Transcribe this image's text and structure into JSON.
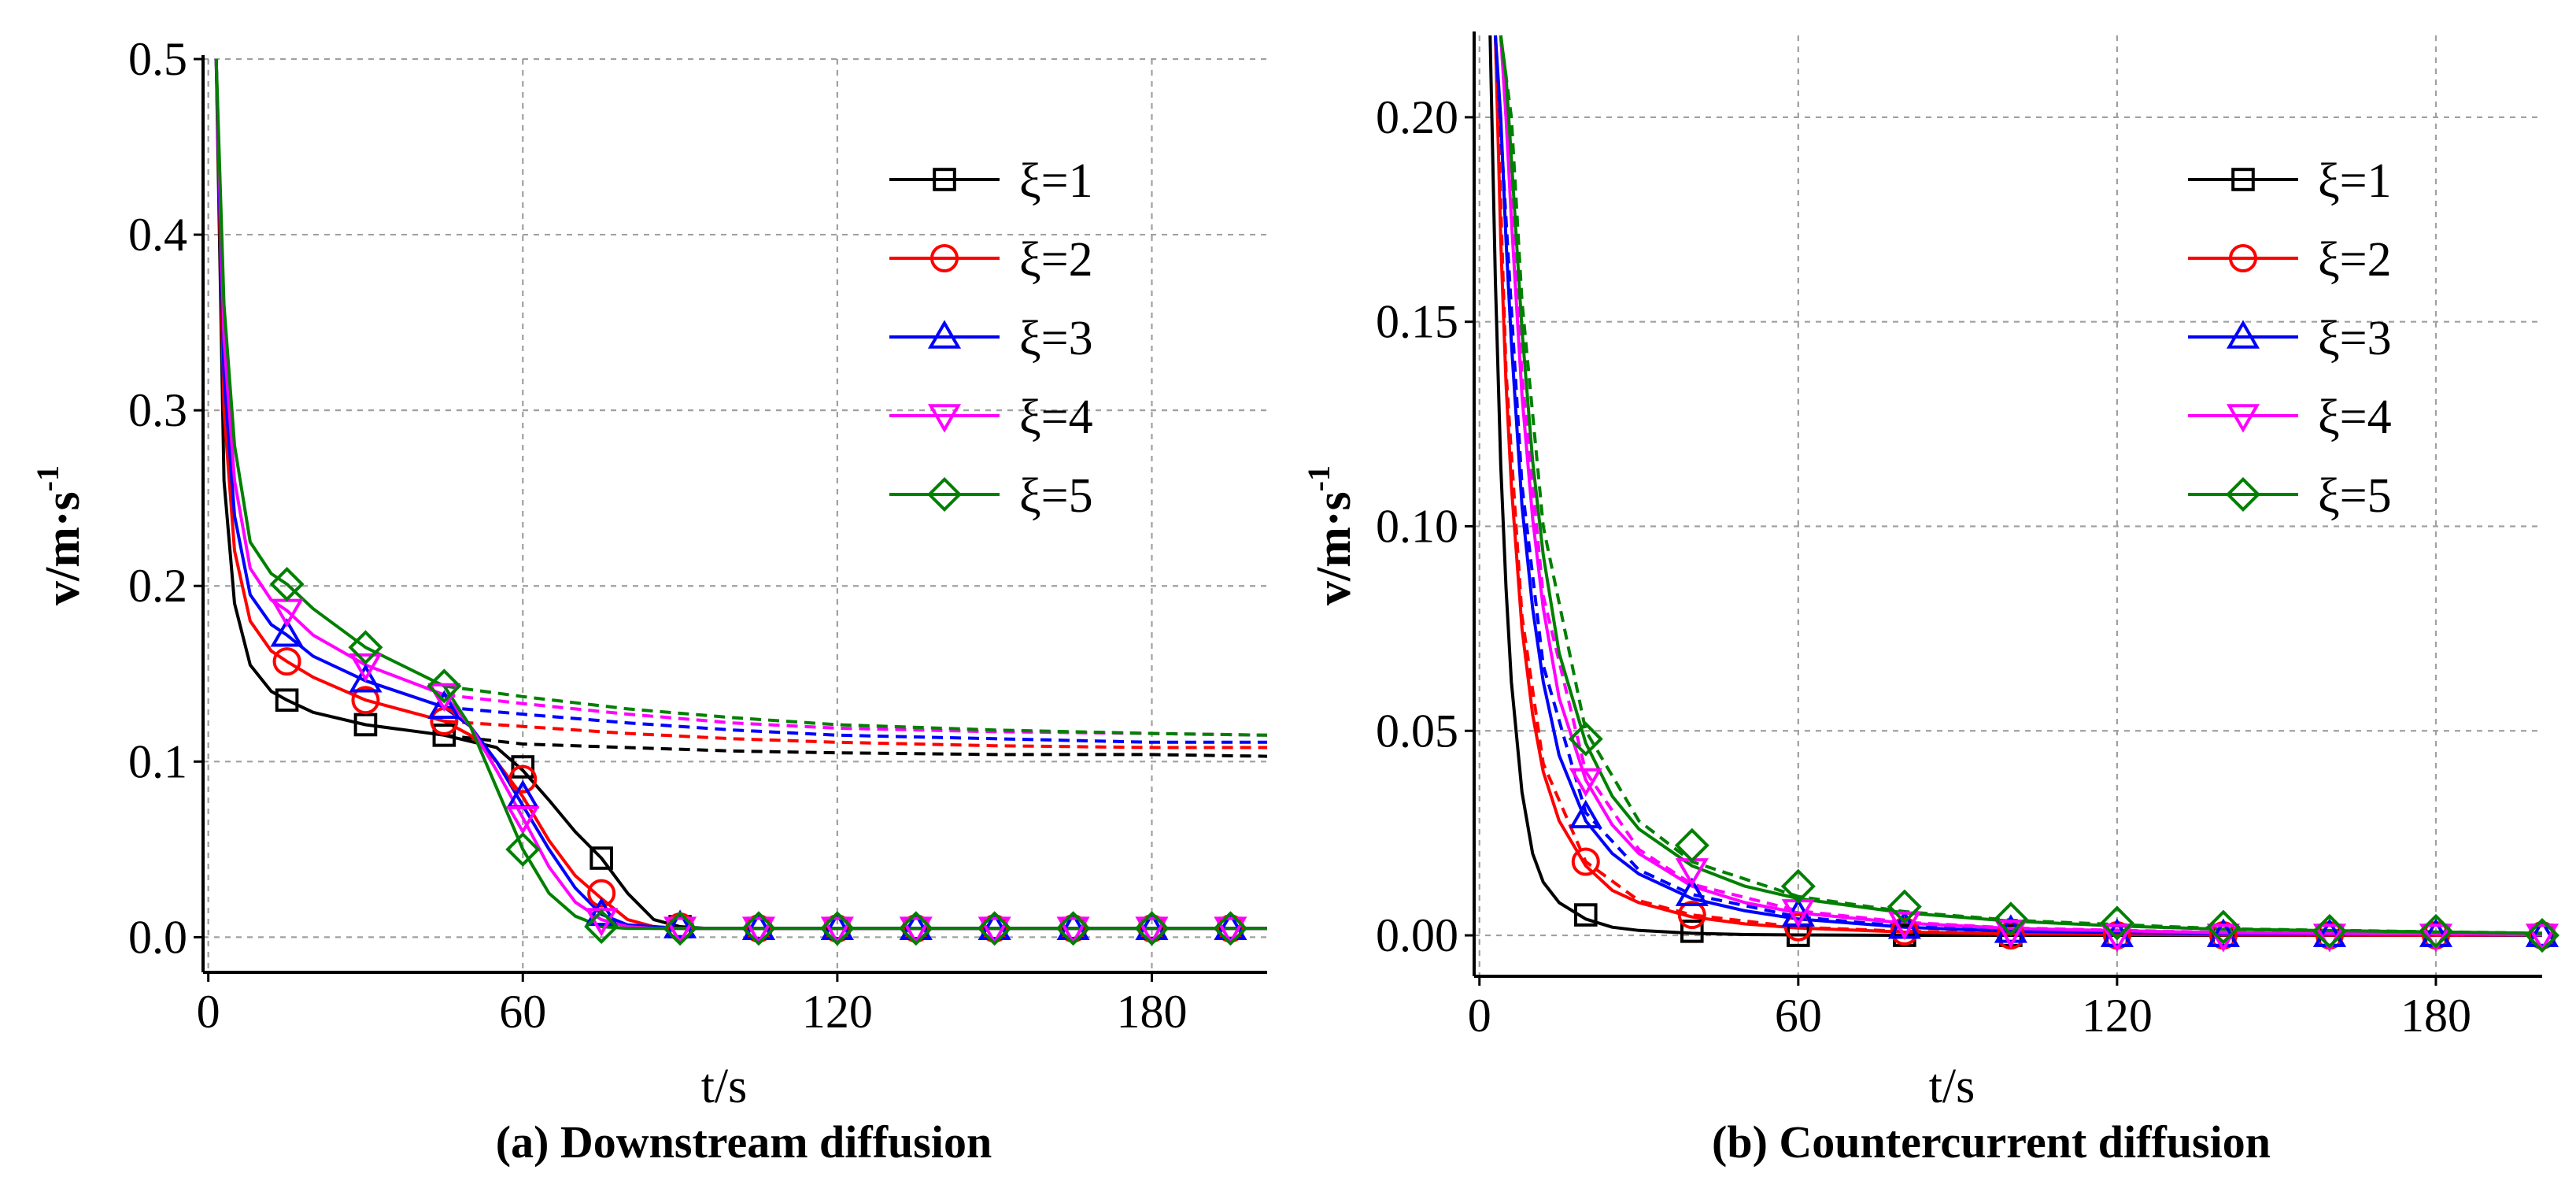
{
  "colors": {
    "xi1": "#000000",
    "xi2": "#ff0000",
    "xi3": "#0000ff",
    "xi4": "#ff00ff",
    "xi5": "#008000"
  },
  "legend": [
    "ξ=1",
    "ξ=2",
    "ξ=3",
    "ξ=4",
    "ξ=5"
  ],
  "chart_data": [
    {
      "type": "line",
      "caption": "(a) Downstream diffusion",
      "xlabel": "t/s",
      "ylabel_base": "v/m·s",
      "ylabel_exp": "-1",
      "xlim": [
        -1,
        202
      ],
      "ylim": [
        -0.02,
        0.5
      ],
      "xticks": [
        0,
        60,
        120,
        180
      ],
      "xtick_labels": [
        "0",
        "60",
        "120",
        "180"
      ],
      "yticks": [
        0.0,
        0.1,
        0.2,
        0.3,
        0.4,
        0.5
      ],
      "ytick_labels": [
        "0.0",
        "0.1",
        "0.2",
        "0.3",
        "0.4",
        "0.5"
      ],
      "grid": true,
      "legend_position": "top-right",
      "series": [
        {
          "name": "ξ=1",
          "marker": "square",
          "x": [
            1.5,
            3,
            5,
            8,
            12,
            15,
            20,
            30,
            45,
            55,
            60,
            65,
            70,
            75,
            80,
            85,
            90,
            95,
            105,
            120,
            150,
            180,
            202
          ],
          "y": [
            0.5,
            0.26,
            0.19,
            0.155,
            0.14,
            0.135,
            0.128,
            0.121,
            0.115,
            0.108,
            0.095,
            0.078,
            0.06,
            0.045,
            0.025,
            0.01,
            0.006,
            0.005,
            0.005,
            0.005,
            0.005,
            0.005,
            0.005
          ],
          "dashed_x": [
            45,
            60,
            80,
            100,
            120,
            150,
            180,
            202
          ],
          "dashed_y": [
            0.115,
            0.11,
            0.108,
            0.106,
            0.105,
            0.104,
            0.104,
            0.103
          ],
          "marker_x": [
            15,
            30,
            45,
            60,
            75,
            90,
            105,
            120,
            135,
            150,
            165,
            180,
            195
          ],
          "marker_y": [
            0.135,
            0.121,
            0.115,
            0.097,
            0.045,
            0.006,
            0.005,
            0.005,
            0.005,
            0.005,
            0.005,
            0.005,
            0.005
          ]
        },
        {
          "name": "ξ=2",
          "marker": "circle",
          "x": [
            1.5,
            3,
            5,
            8,
            12,
            15,
            20,
            30,
            45,
            50,
            55,
            60,
            65,
            70,
            75,
            80,
            85,
            90,
            105,
            120,
            150,
            180,
            202
          ],
          "y": [
            0.5,
            0.3,
            0.22,
            0.18,
            0.163,
            0.157,
            0.148,
            0.135,
            0.123,
            0.115,
            0.1,
            0.08,
            0.055,
            0.035,
            0.022,
            0.01,
            0.006,
            0.005,
            0.005,
            0.005,
            0.005,
            0.005,
            0.005
          ],
          "dashed_x": [
            45,
            60,
            80,
            100,
            120,
            150,
            180,
            202
          ],
          "dashed_y": [
            0.123,
            0.12,
            0.116,
            0.113,
            0.111,
            0.109,
            0.108,
            0.108
          ],
          "marker_x": [
            15,
            30,
            45,
            60,
            75,
            90,
            105,
            120,
            135,
            150,
            165,
            180,
            195
          ],
          "marker_y": [
            0.157,
            0.135,
            0.123,
            0.09,
            0.025,
            0.006,
            0.005,
            0.005,
            0.005,
            0.005,
            0.005,
            0.005,
            0.005
          ]
        },
        {
          "name": "ξ=3",
          "marker": "triangle-up",
          "x": [
            1.5,
            3,
            5,
            8,
            12,
            15,
            20,
            30,
            45,
            50,
            55,
            60,
            65,
            70,
            75,
            80,
            85,
            90,
            105,
            120,
            150,
            180,
            202
          ],
          "y": [
            0.5,
            0.32,
            0.24,
            0.195,
            0.178,
            0.172,
            0.16,
            0.146,
            0.131,
            0.12,
            0.1,
            0.075,
            0.05,
            0.028,
            0.013,
            0.007,
            0.006,
            0.005,
            0.005,
            0.005,
            0.005,
            0.005,
            0.005
          ],
          "dashed_x": [
            45,
            60,
            80,
            100,
            120,
            150,
            180,
            202
          ],
          "dashed_y": [
            0.131,
            0.127,
            0.122,
            0.118,
            0.115,
            0.113,
            0.111,
            0.111
          ],
          "marker_x": [
            15,
            30,
            45,
            60,
            75,
            90,
            105,
            120,
            135,
            150,
            165,
            180,
            195
          ],
          "marker_y": [
            0.172,
            0.146,
            0.131,
            0.08,
            0.013,
            0.006,
            0.005,
            0.005,
            0.005,
            0.005,
            0.005,
            0.005,
            0.005
          ]
        },
        {
          "name": "ξ=4",
          "marker": "triangle-down",
          "x": [
            1.5,
            3,
            5,
            8,
            12,
            15,
            20,
            30,
            45,
            50,
            55,
            60,
            65,
            70,
            75,
            80,
            85,
            90,
            105,
            120,
            150,
            180,
            202
          ],
          "y": [
            0.5,
            0.34,
            0.26,
            0.21,
            0.192,
            0.186,
            0.172,
            0.155,
            0.138,
            0.12,
            0.095,
            0.068,
            0.04,
            0.02,
            0.01,
            0.006,
            0.005,
            0.005,
            0.005,
            0.005,
            0.005,
            0.005,
            0.005
          ],
          "dashed_x": [
            45,
            60,
            80,
            100,
            120,
            150,
            180,
            202
          ],
          "dashed_y": [
            0.138,
            0.133,
            0.127,
            0.122,
            0.119,
            0.117,
            0.116,
            0.115
          ],
          "marker_x": [
            15,
            30,
            45,
            60,
            75,
            90,
            105,
            120,
            135,
            150,
            165,
            180,
            195
          ],
          "marker_y": [
            0.186,
            0.155,
            0.138,
            0.068,
            0.01,
            0.005,
            0.005,
            0.005,
            0.005,
            0.005,
            0.005,
            0.005,
            0.005
          ]
        },
        {
          "name": "ξ=5",
          "marker": "diamond",
          "x": [
            1.5,
            3,
            5,
            8,
            12,
            15,
            20,
            30,
            45,
            50,
            55,
            60,
            65,
            70,
            75,
            80,
            85,
            90,
            105,
            120,
            150,
            180,
            202
          ],
          "y": [
            0.5,
            0.36,
            0.28,
            0.225,
            0.207,
            0.201,
            0.187,
            0.165,
            0.143,
            0.12,
            0.085,
            0.05,
            0.025,
            0.012,
            0.006,
            0.005,
            0.005,
            0.005,
            0.005,
            0.005,
            0.005,
            0.005,
            0.005
          ],
          "dashed_x": [
            45,
            60,
            80,
            100,
            120,
            150,
            180,
            202
          ],
          "dashed_y": [
            0.143,
            0.137,
            0.13,
            0.125,
            0.121,
            0.118,
            0.116,
            0.115
          ],
          "marker_x": [
            15,
            30,
            45,
            60,
            75,
            90,
            105,
            120,
            135,
            150,
            165,
            180,
            195
          ],
          "marker_y": [
            0.201,
            0.165,
            0.143,
            0.05,
            0.006,
            0.005,
            0.005,
            0.005,
            0.005,
            0.005,
            0.005,
            0.005,
            0.005
          ]
        }
      ]
    },
    {
      "type": "line",
      "caption": "(b) Countercurrent diffusion",
      "xlabel": "t/s",
      "ylabel_base": "v/m·s",
      "ylabel_exp": "-1",
      "xlim": [
        -1,
        200
      ],
      "ylim": [
        -0.01,
        0.22
      ],
      "xticks": [
        0,
        60,
        120,
        180
      ],
      "xtick_labels": [
        "0",
        "60",
        "120",
        "180"
      ],
      "yticks": [
        0.0,
        0.05,
        0.1,
        0.15,
        0.2
      ],
      "ytick_labels": [
        "0.00",
        "0.05",
        "0.10",
        "0.15",
        "0.20"
      ],
      "grid": true,
      "legend_position": "top-right",
      "series": [
        {
          "name": "ξ=1",
          "marker": "square",
          "x": [
            2,
            3,
            4,
            5,
            6,
            8,
            10,
            12,
            15,
            20,
            25,
            30,
            40,
            50,
            60,
            80,
            100,
            140,
            200
          ],
          "y": [
            0.22,
            0.16,
            0.115,
            0.085,
            0.062,
            0.035,
            0.02,
            0.013,
            0.008,
            0.004,
            0.002,
            0.0012,
            0.0005,
            0.0002,
            0.0001,
            0.0,
            0.0,
            0.0,
            0.0
          ],
          "dashed_x": [],
          "dashed_y": [],
          "marker_x": [
            20,
            40,
            60,
            80,
            100,
            120,
            140,
            160,
            180,
            200
          ],
          "marker_y": [
            0.005,
            0.001,
            0.0,
            0.0,
            0.0,
            0.0,
            0.0,
            0.0,
            0.0,
            0.0
          ]
        },
        {
          "name": "ξ=2",
          "marker": "circle",
          "x": [
            3,
            4,
            5,
            6,
            8,
            10,
            12,
            15,
            20,
            25,
            30,
            40,
            50,
            60,
            80,
            100,
            140,
            200
          ],
          "y": [
            0.22,
            0.17,
            0.135,
            0.11,
            0.075,
            0.054,
            0.04,
            0.028,
            0.017,
            0.011,
            0.008,
            0.0045,
            0.0028,
            0.0018,
            0.0008,
            0.0004,
            0.0001,
            0.0
          ],
          "dashed_x": [
            3,
            5,
            8,
            12,
            20,
            30,
            40,
            60,
            80,
            100,
            140,
            200
          ],
          "dashed_y": [
            0.22,
            0.138,
            0.078,
            0.042,
            0.018,
            0.0085,
            0.005,
            0.002,
            0.001,
            0.0005,
            0.0002,
            0.0
          ],
          "marker_x": [
            20,
            40,
            60,
            80,
            100,
            120,
            140,
            160,
            180,
            200
          ],
          "marker_y": [
            0.018,
            0.005,
            0.002,
            0.001,
            0.0,
            0.0,
            0.0,
            0.0,
            0.0,
            0.0
          ]
        },
        {
          "name": "ξ=3",
          "marker": "triangle-up",
          "x": [
            3,
            4,
            5,
            6,
            8,
            10,
            12,
            15,
            20,
            25,
            30,
            40,
            50,
            60,
            80,
            100,
            140,
            200
          ],
          "y": [
            0.22,
            0.2,
            0.17,
            0.145,
            0.105,
            0.08,
            0.062,
            0.044,
            0.028,
            0.02,
            0.015,
            0.009,
            0.006,
            0.004,
            0.002,
            0.001,
            0.0004,
            0.0001
          ],
          "dashed_x": [
            3,
            5,
            8,
            12,
            20,
            30,
            40,
            60,
            80,
            100,
            140,
            200
          ],
          "dashed_y": [
            0.22,
            0.175,
            0.11,
            0.066,
            0.03,
            0.016,
            0.01,
            0.0045,
            0.0022,
            0.0012,
            0.0005,
            0.0001
          ],
          "marker_x": [
            20,
            40,
            60,
            80,
            100,
            120,
            140,
            160,
            180,
            200
          ],
          "marker_y": [
            0.029,
            0.01,
            0.005,
            0.002,
            0.001,
            0.0,
            0.0,
            0.0,
            0.0,
            0.0
          ]
        },
        {
          "name": "ξ=4",
          "marker": "triangle-down",
          "x": [
            4,
            5,
            6,
            8,
            10,
            12,
            15,
            20,
            25,
            30,
            40,
            50,
            60,
            80,
            100,
            140,
            200
          ],
          "y": [
            0.22,
            0.2,
            0.175,
            0.132,
            0.102,
            0.08,
            0.058,
            0.038,
            0.027,
            0.02,
            0.012,
            0.008,
            0.0055,
            0.003,
            0.0017,
            0.0006,
            0.0002
          ],
          "dashed_x": [
            4,
            6,
            8,
            12,
            20,
            30,
            40,
            60,
            80,
            100,
            140,
            200
          ],
          "dashed_y": [
            0.22,
            0.18,
            0.137,
            0.083,
            0.04,
            0.021,
            0.0125,
            0.006,
            0.0032,
            0.0018,
            0.0007,
            0.0002
          ],
          "marker_x": [
            20,
            40,
            60,
            80,
            100,
            120,
            140,
            160,
            180,
            200
          ],
          "marker_y": [
            0.038,
            0.016,
            0.006,
            0.003,
            0.001,
            0.0,
            0.0,
            0.0,
            0.0,
            0.0
          ]
        },
        {
          "name": "ξ=5",
          "marker": "diamond",
          "x": [
            4,
            5,
            6,
            8,
            10,
            12,
            15,
            20,
            25,
            30,
            40,
            50,
            60,
            80,
            100,
            120,
            140,
            200
          ],
          "y": [
            0.22,
            0.21,
            0.19,
            0.148,
            0.116,
            0.093,
            0.069,
            0.047,
            0.034,
            0.026,
            0.017,
            0.012,
            0.009,
            0.0055,
            0.0035,
            0.0023,
            0.0015,
            0.0005
          ],
          "dashed_x": [
            4,
            6,
            8,
            12,
            20,
            30,
            40,
            60,
            80,
            100,
            140,
            200
          ],
          "dashed_y": [
            0.22,
            0.2,
            0.155,
            0.1,
            0.05,
            0.028,
            0.018,
            0.0095,
            0.0058,
            0.0037,
            0.0016,
            0.0005
          ],
          "marker_x": [
            20,
            40,
            60,
            80,
            100,
            120,
            140,
            160,
            180,
            200
          ],
          "marker_y": [
            0.048,
            0.022,
            0.012,
            0.007,
            0.004,
            0.003,
            0.002,
            0.001,
            0.001,
            0.0
          ]
        }
      ]
    }
  ]
}
